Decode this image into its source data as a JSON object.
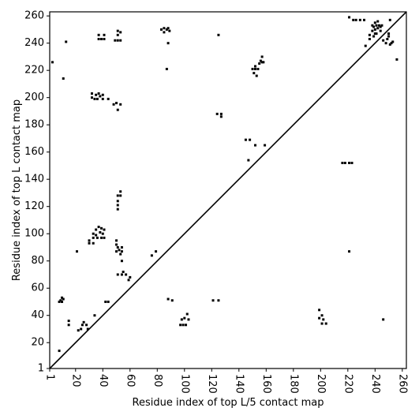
{
  "chart_data": {
    "type": "scatter",
    "xlabel": "Residue index of top L/5 contact map",
    "ylabel": "Residue index of top L contact map",
    "color": "#000000",
    "xlim": [
      1,
      263
    ],
    "ylim": [
      1,
      263
    ],
    "xticks": [
      1,
      20,
      40,
      60,
      80,
      100,
      120,
      140,
      160,
      180,
      200,
      220,
      240,
      260
    ],
    "yticks": [
      1,
      20,
      40,
      60,
      80,
      100,
      120,
      140,
      160,
      180,
      200,
      220,
      240,
      260
    ],
    "x": [
      3,
      13,
      11,
      37,
      37,
      39,
      41,
      41,
      49,
      51,
      53,
      51,
      51,
      53,
      83,
      85,
      85,
      87,
      88,
      89,
      88,
      87,
      125,
      32,
      32,
      34,
      36,
      35,
      37,
      38,
      40,
      40,
      44,
      48,
      50,
      51,
      53,
      124,
      127,
      127,
      145,
      148,
      152,
      159,
      147,
      150,
      151,
      152,
      153,
      154,
      155,
      156,
      157,
      158,
      152,
      157,
      51,
      53,
      53,
      51,
      51,
      51,
      30,
      30,
      33,
      33,
      35,
      35,
      36,
      37,
      38,
      39,
      40,
      41,
      41,
      39,
      33,
      50,
      50,
      51,
      52,
      50,
      54,
      54,
      53,
      54,
      51,
      54,
      55,
      57,
      60,
      59,
      76,
      79,
      8,
      9,
      10,
      10,
      11,
      15,
      15,
      21,
      8,
      22,
      24,
      25,
      26,
      28,
      29,
      34,
      42,
      44,
      88,
      91,
      97,
      99,
      100,
      101,
      102,
      103,
      98,
      121,
      125,
      199,
      199,
      201,
      201,
      204,
      202,
      216,
      218,
      221,
      223,
      221,
      246,
      221,
      224,
      226,
      229,
      232,
      233,
      236,
      236,
      238,
      239,
      240,
      240,
      241,
      242,
      242,
      243,
      244,
      241,
      239,
      244,
      245,
      246,
      248,
      249,
      250,
      251,
      252,
      253,
      251,
      256,
      250,
      238,
      240
    ],
    "y": [
      226,
      241,
      214,
      243,
      246,
      243,
      243,
      246,
      242,
      242,
      242,
      246,
      249,
      248,
      250,
      251,
      248,
      250,
      251,
      249,
      240,
      221,
      246,
      203,
      200,
      199,
      199,
      202,
      203,
      201,
      202,
      199,
      199,
      195,
      196,
      191,
      195,
      188,
      188,
      186,
      169,
      169,
      165,
      165,
      154,
      221,
      218,
      221,
      216,
      221,
      225,
      227,
      226,
      226,
      223,
      230,
      128,
      128,
      131,
      124,
      121,
      118,
      95,
      93,
      97,
      100,
      103,
      99,
      97,
      105,
      101,
      104,
      100,
      97,
      103,
      97,
      93,
      95,
      92,
      90,
      88,
      87,
      90,
      87,
      85,
      80,
      70,
      70,
      72,
      70,
      68,
      66,
      84,
      87,
      50,
      51,
      50,
      53,
      52,
      33,
      36,
      87,
      14,
      29,
      30,
      33,
      35,
      33,
      30,
      40,
      50,
      50,
      52,
      51,
      33,
      33,
      38,
      33,
      41,
      37,
      37,
      51,
      51,
      44,
      38,
      40,
      34,
      34,
      37,
      152,
      152,
      152,
      152,
      87,
      37,
      259,
      257,
      257,
      257,
      257,
      238,
      243,
      246,
      249,
      252,
      255,
      250,
      253,
      256,
      251,
      253,
      252,
      247,
      245,
      249,
      253,
      242,
      240,
      243,
      245,
      239,
      240,
      241,
      257,
      228,
      247,
      253,
      247
    ]
  }
}
